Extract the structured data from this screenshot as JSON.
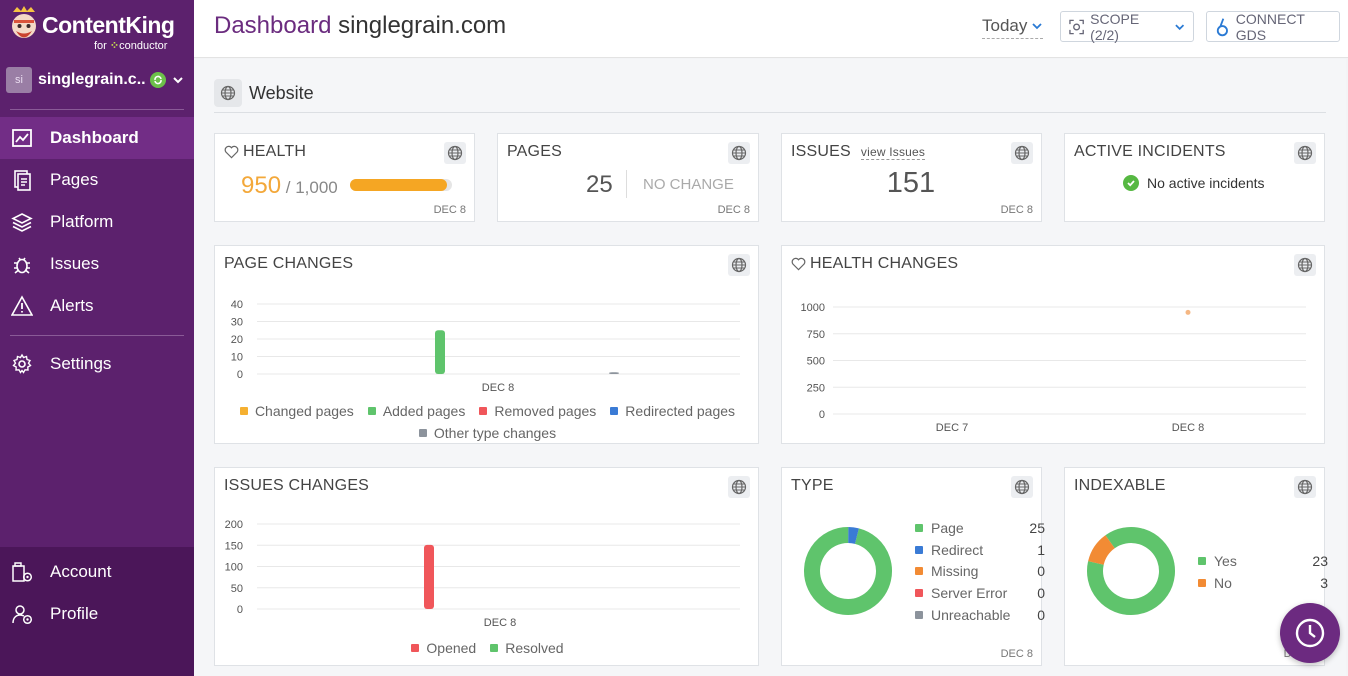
{
  "brand": {
    "name": "ContentKing",
    "sub_for": "for",
    "sub_conductor": "conductor"
  },
  "site_switcher": {
    "avatar": "si",
    "name": "singlegrain.c..."
  },
  "nav": {
    "dashboard": "Dashboard",
    "pages": "Pages",
    "platform": "Platform",
    "issues": "Issues",
    "alerts": "Alerts",
    "settings": "Settings",
    "account": "Account",
    "profile": "Profile"
  },
  "header": {
    "title_accent": "Dashboard",
    "title_domain": "singlegrain.com",
    "date_range": "Today",
    "scope_label": "SCOPE (2/2)",
    "connect_gds": "CONNECT GDS"
  },
  "section": {
    "title": "Website"
  },
  "health": {
    "title": "HEALTH",
    "score": "950",
    "max": " / 1,000",
    "fraction": 0.95,
    "date": "DEC 8"
  },
  "pages": {
    "title": "PAGES",
    "value": "25",
    "change": "NO CHANGE",
    "date": "DEC 8"
  },
  "issues": {
    "title": "ISSUES",
    "link": "view Issues",
    "value": "151",
    "date": "DEC 8"
  },
  "incidents": {
    "title": "ACTIVE INCIDENTS",
    "status": "No active incidents"
  },
  "page_changes": {
    "title": "PAGE CHANGES",
    "legend": [
      {
        "label": "Changed pages",
        "color": "#f5b031"
      },
      {
        "label": "Added pages",
        "color": "#5fc46c"
      },
      {
        "label": "Removed pages",
        "color": "#f0565a"
      },
      {
        "label": "Redirected pages",
        "color": "#3a7bd5"
      },
      {
        "label": "Other type changes",
        "color": "#8c939c"
      }
    ]
  },
  "health_changes": {
    "title": "HEALTH CHANGES"
  },
  "issues_changes": {
    "title": "ISSUES CHANGES",
    "legend": [
      {
        "label": "Opened",
        "color": "#f0565a"
      },
      {
        "label": "Resolved",
        "color": "#5fc46c"
      }
    ]
  },
  "type": {
    "title": "TYPE",
    "date": "DEC 8",
    "rows": [
      {
        "label": "Page",
        "value": "25",
        "color": "#5fc46c"
      },
      {
        "label": "Redirect",
        "value": "1",
        "color": "#3a7bd5"
      },
      {
        "label": "Missing",
        "value": "0",
        "color": "#f28b34"
      },
      {
        "label": "Server Error",
        "value": "0",
        "color": "#f0565a"
      },
      {
        "label": "Unreachable",
        "value": "0",
        "color": "#8c939c"
      }
    ]
  },
  "indexable": {
    "title": "INDEXABLE",
    "date": "DEC 8",
    "rows": [
      {
        "label": "Yes",
        "value": "23",
        "color": "#5fc46c"
      },
      {
        "label": "No",
        "value": "3",
        "color": "#f28b34"
      }
    ]
  },
  "chart_data": [
    {
      "type": "bar",
      "title": "PAGE CHANGES",
      "categories": [
        "DEC 8"
      ],
      "yticks": [
        0,
        10,
        20,
        30,
        40
      ],
      "ylim": [
        0,
        40
      ],
      "series": [
        {
          "name": "Changed pages",
          "values": [
            0
          ]
        },
        {
          "name": "Added pages",
          "values": [
            25
          ]
        },
        {
          "name": "Removed pages",
          "values": [
            0
          ]
        },
        {
          "name": "Redirected pages",
          "values": [
            0
          ]
        },
        {
          "name": "Other type changes",
          "values": [
            1
          ]
        }
      ]
    },
    {
      "type": "line",
      "title": "HEALTH CHANGES",
      "x": [
        "DEC 7",
        "DEC 8"
      ],
      "yticks": [
        0,
        250,
        500,
        750,
        1000
      ],
      "ylim": [
        0,
        1000
      ],
      "series": [
        {
          "values": [
            null,
            950
          ]
        }
      ]
    },
    {
      "type": "bar",
      "title": "ISSUES CHANGES",
      "categories": [
        "DEC 8"
      ],
      "yticks": [
        0,
        50,
        100,
        150,
        200
      ],
      "ylim": [
        0,
        200
      ],
      "series": [
        {
          "name": "Opened",
          "values": [
            151
          ]
        },
        {
          "name": "Resolved",
          "values": [
            0
          ]
        }
      ]
    },
    {
      "type": "pie",
      "title": "TYPE",
      "categories": [
        "Page",
        "Redirect",
        "Missing",
        "Server Error",
        "Unreachable"
      ],
      "values": [
        25,
        1,
        0,
        0,
        0
      ]
    },
    {
      "type": "pie",
      "title": "INDEXABLE",
      "categories": [
        "Yes",
        "No"
      ],
      "values": [
        23,
        3
      ]
    }
  ]
}
